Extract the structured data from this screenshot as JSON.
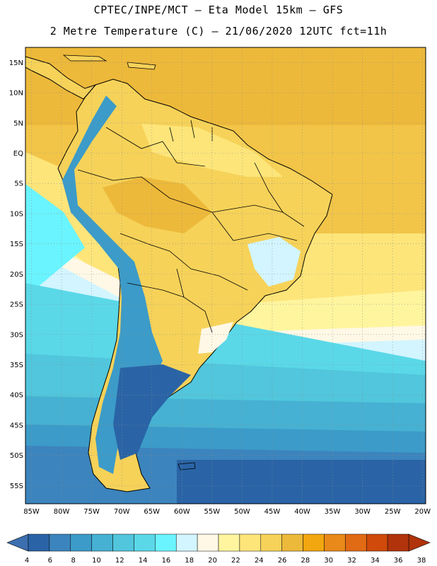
{
  "title": {
    "line1": "CPTEC/INPE/MCT –  Eta Model 15km – GFS",
    "line2": "2 Metre Temperature (C) – 21/06/2020 12UTC fct=11h"
  },
  "axes": {
    "lat_labels": [
      "15N",
      "10N",
      "5N",
      "EQ",
      "5S",
      "10S",
      "15S",
      "20S",
      "25S",
      "30S",
      "35S",
      "40S",
      "45S",
      "50S",
      "55S"
    ],
    "lon_labels": [
      "85W",
      "80W",
      "75W",
      "70W",
      "65W",
      "60W",
      "55W",
      "50W",
      "45W",
      "40W",
      "35W",
      "30W",
      "25W",
      "20W"
    ],
    "lat_range": [
      17.5,
      -58
    ],
    "lon_range": [
      -86,
      -19.5
    ]
  },
  "colorbar": {
    "labels": [
      "4",
      "6",
      "8",
      "10",
      "12",
      "14",
      "16",
      "18",
      "20",
      "22",
      "24",
      "26",
      "28",
      "30",
      "32",
      "34",
      "36",
      "38"
    ],
    "colors": [
      "#2a64a6",
      "#3c84bd",
      "#3c9bc8",
      "#46b1d3",
      "#51c6dc",
      "#5ad8e8",
      "#6af4ff",
      "#d2f5ff",
      "#fff8e6",
      "#fff59e",
      "#fde57a",
      "#f6d259",
      "#edb93a",
      "#f2a60f",
      "#e88919",
      "#e16a14",
      "#cf4a0b",
      "#b0330b"
    ],
    "left_arrow_color": "#3c6fb0",
    "right_arrow_color": "#b0330b"
  },
  "colors": {
    "ocean_warm": "#f0c94a",
    "ocean_mid": "#fde57a",
    "ocean_cool": "#51c6dc",
    "ocean_cold": "#2a64a6",
    "land_warm": "#f6d259",
    "andes": "#3c9bc8",
    "coast": "#000000",
    "grid": "#8c8c8c"
  }
}
